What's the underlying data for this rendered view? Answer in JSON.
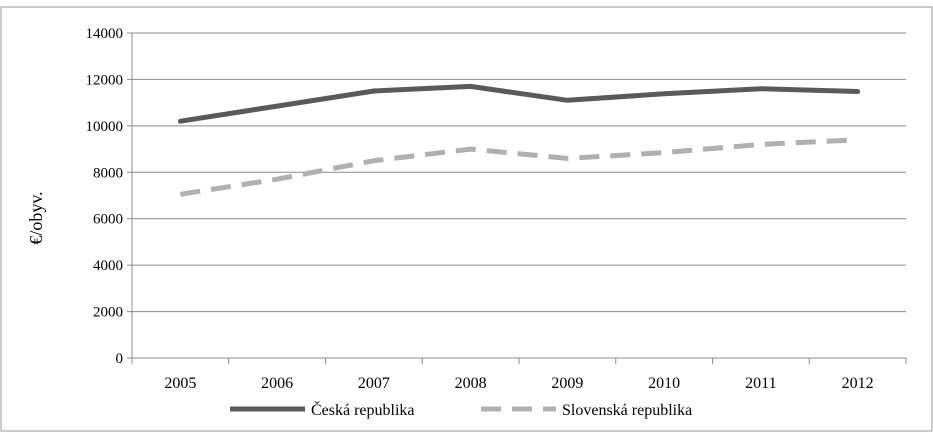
{
  "chart_data": {
    "type": "line",
    "categories": [
      "2005",
      "2006",
      "2007",
      "2008",
      "2009",
      "2010",
      "2011",
      "2012"
    ],
    "series": [
      {
        "name": "Česká republika",
        "values": [
          10200,
          10850,
          11500,
          11700,
          11100,
          11380,
          11600,
          11480
        ],
        "color": "#5a5a5a",
        "style": "solid"
      },
      {
        "name": "Slovenská republika",
        "values": [
          7050,
          7700,
          8500,
          9000,
          8600,
          8850,
          9200,
          9400
        ],
        "color": "#b0b0b0",
        "style": "dashed"
      }
    ],
    "ylabel": "€/obyv.",
    "ylim": [
      0,
      14000
    ],
    "yticks": [
      "0",
      "2000",
      "4000",
      "6000",
      "8000",
      "10000",
      "12000",
      "14000"
    ],
    "grid": true,
    "legend_position": "bottom"
  }
}
